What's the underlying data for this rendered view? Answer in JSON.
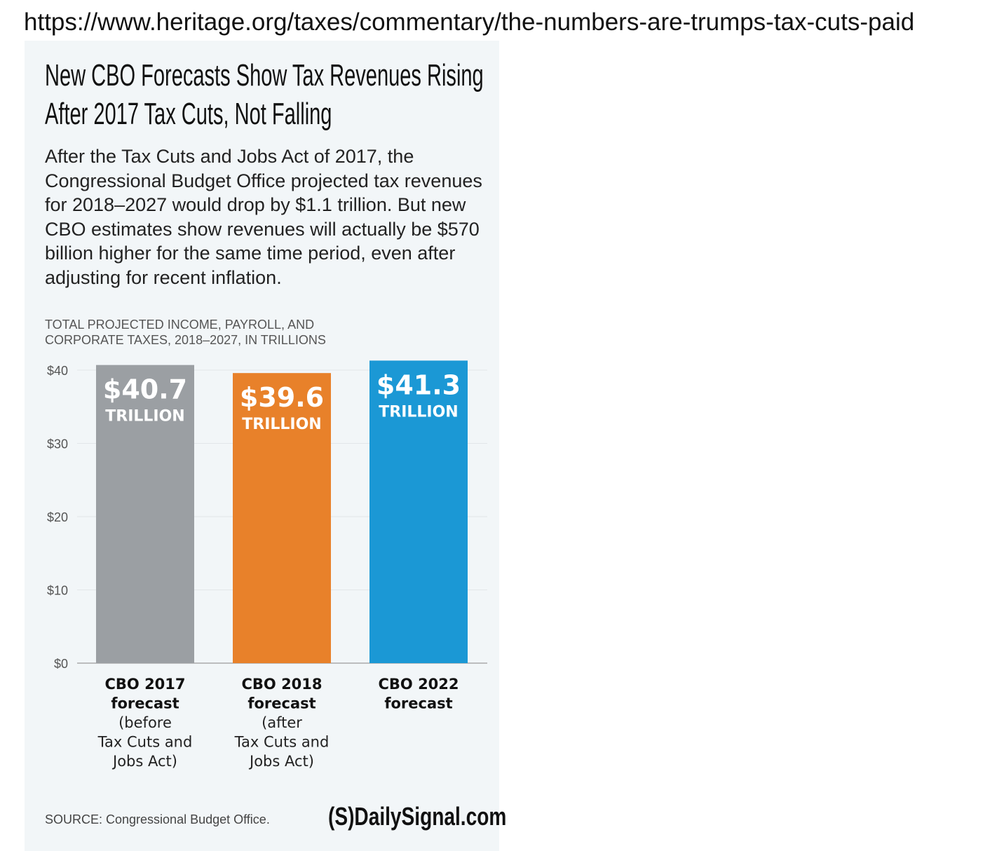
{
  "url": "https://www.heritage.org/taxes/commentary/the-numbers-are-trumps-tax-cuts-paid",
  "source": "SOURCE: Congressional Budget Office.",
  "logo_text": "(S)DailySignal.com",
  "chart_data": {
    "type": "bar",
    "title": "New CBO Forecasts Show Tax Revenues Rising After 2017 Tax Cuts, Not Falling",
    "subtitle": "After the Tax Cuts and Jobs Act of 2017, the Congressional Budget Office projected tax revenues for 2018–2027 would drop by $1.1 trillion. But new CBO estimates show revenues will actually be $570 billion higher for the same time period, even after adjusting for recent inflation.",
    "ylabel": "TOTAL PROJECTED INCOME, PAYROLL, AND CORPORATE TAXES, 2018–2027, IN TRILLIONS",
    "ylim": [
      0,
      40
    ],
    "yticks": [
      0,
      10,
      20,
      30,
      40
    ],
    "ytick_labels": [
      "$0",
      "$10",
      "$20",
      "$30",
      "$40"
    ],
    "grid": true,
    "categories": [
      {
        "bold": [
          "CBO 2017",
          "forecast"
        ],
        "normal": [
          "(before",
          "Tax Cuts and",
          "Jobs Act)"
        ]
      },
      {
        "bold": [
          "CBO 2018",
          "forecast"
        ],
        "normal": [
          "(after",
          "Tax Cuts and",
          "Jobs Act)"
        ]
      },
      {
        "bold": [
          "CBO 2022",
          "forecast"
        ],
        "normal": []
      }
    ],
    "values": [
      40.7,
      39.6,
      41.3
    ],
    "value_labels": [
      "$40.7",
      "$39.6",
      "$41.3"
    ],
    "unit_label": "TRILLION",
    "colors": [
      "#9b9fa3",
      "#e8812a",
      "#1b98d5"
    ]
  }
}
